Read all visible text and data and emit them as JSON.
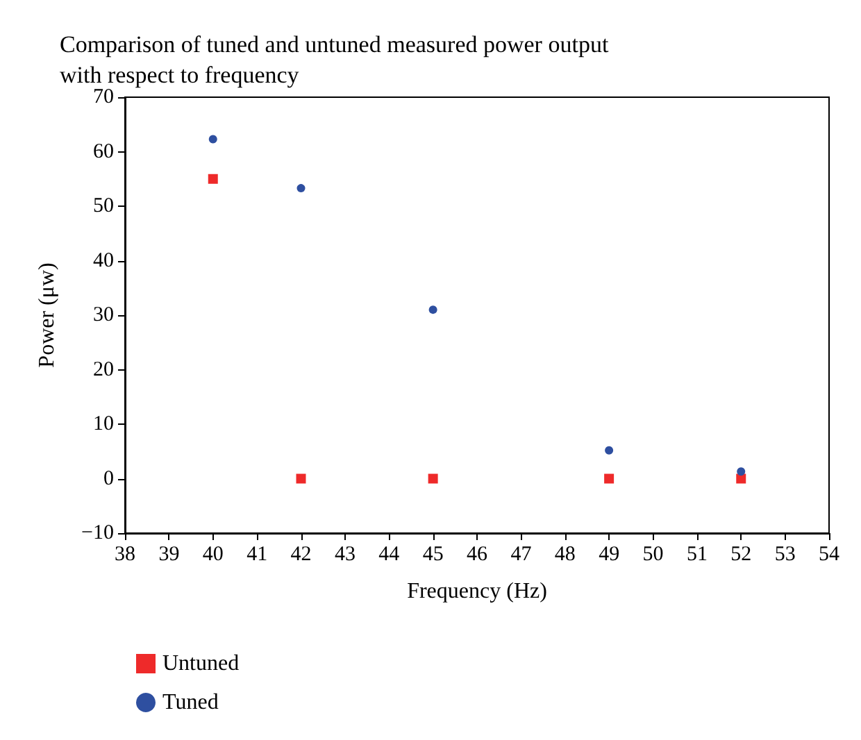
{
  "chart_data": {
    "type": "scatter",
    "title": "Comparison of tuned and untuned measured power output\nwith respect to frequency",
    "xlabel": "Frequency (Hz)",
    "ylabel": "Power (μw)",
    "x": [
      40,
      42,
      45,
      49,
      52
    ],
    "series": [
      {
        "name": "Untuned",
        "color": "#ee2a2a",
        "marker": "square",
        "values": [
          55,
          0,
          0,
          0,
          0
        ]
      },
      {
        "name": "Tuned",
        "color": "#2e4fa0",
        "marker": "circle",
        "values": [
          62.3,
          53.3,
          31,
          5.2,
          1.3
        ]
      }
    ],
    "xlim": [
      38,
      54
    ],
    "xticks": [
      38,
      39,
      40,
      41,
      42,
      43,
      44,
      45,
      46,
      47,
      48,
      49,
      50,
      51,
      52,
      53,
      54
    ],
    "ylim": [
      -10,
      70
    ],
    "yticks": [
      -10,
      0,
      10,
      20,
      30,
      40,
      50,
      60,
      70
    ],
    "grid": false,
    "legend": "bottom left"
  }
}
